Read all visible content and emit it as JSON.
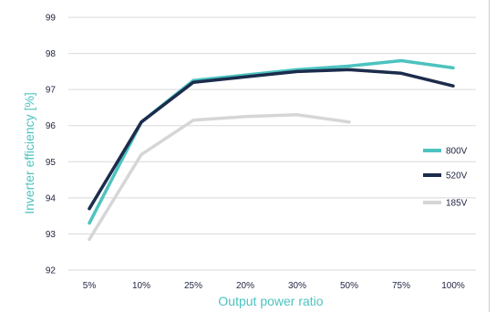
{
  "chart_data": {
    "type": "line",
    "categories": [
      "5%",
      "10%",
      "25%",
      "20%",
      "30%",
      "50%",
      "75%",
      "100%"
    ],
    "xlabel": "Output power ratio",
    "ylabel": "Inverter efficiency [%]",
    "ylim": [
      92,
      99
    ],
    "yticks": [
      "92",
      "93",
      "94",
      "95",
      "96",
      "97",
      "98",
      "99"
    ],
    "grid": "horizontal",
    "legend_position": "right",
    "series": [
      {
        "name": "800V",
        "color": "#4cc3c0",
        "values": [
          93.3,
          96.1,
          97.25,
          97.4,
          97.55,
          97.65,
          97.8,
          97.6
        ]
      },
      {
        "name": "520V",
        "color": "#1c2c4c",
        "values": [
          93.7,
          96.1,
          97.2,
          97.35,
          97.5,
          97.55,
          97.45,
          97.1
        ]
      },
      {
        "name": "185V",
        "color": "#d6d6d6",
        "values": [
          92.85,
          95.2,
          96.15,
          96.25,
          96.3,
          96.1,
          null,
          null
        ]
      }
    ]
  }
}
